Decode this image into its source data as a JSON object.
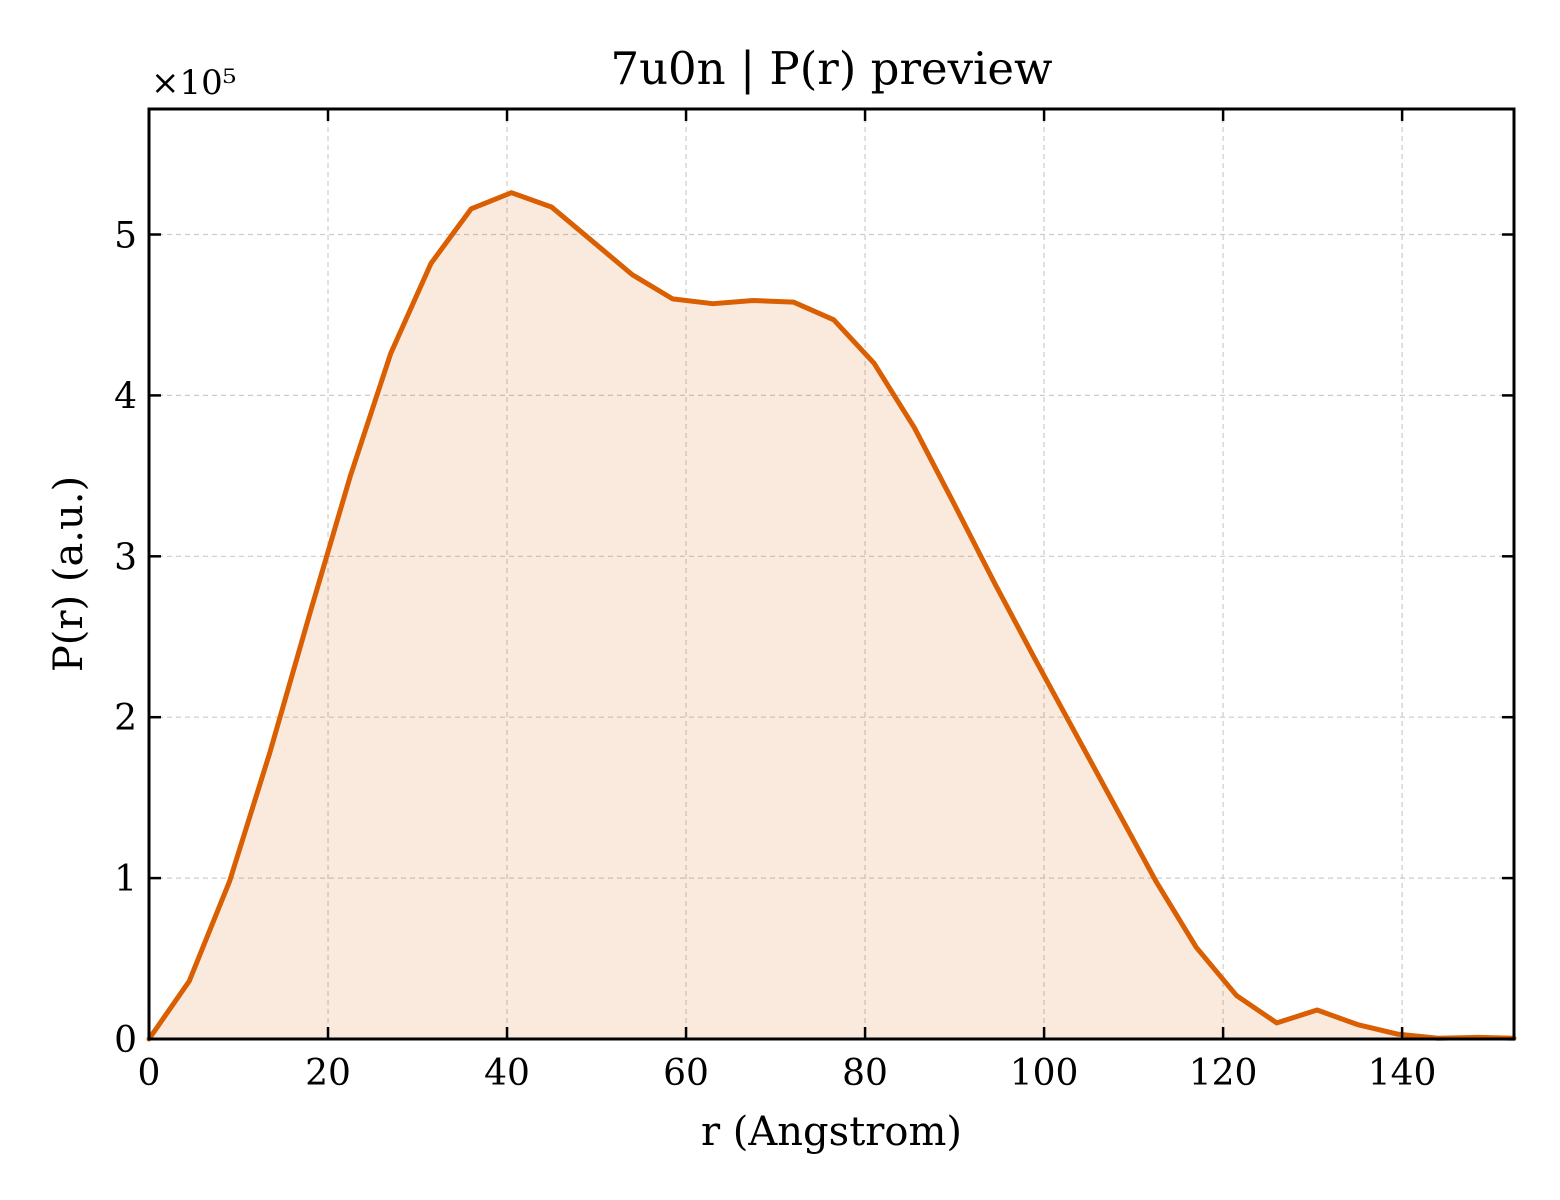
{
  "chart_data": {
    "type": "area",
    "title": "7u0n | P(r) preview",
    "xlabel": "r (Angstrom)",
    "ylabel": "P(r) (a.u.)",
    "y_offset_label": "×10⁵",
    "y_scale": 100000,
    "xlim": [
      0,
      152.5
    ],
    "ylim": [
      0,
      5.78
    ],
    "x_ticks": [
      0,
      20,
      40,
      60,
      80,
      100,
      120,
      140
    ],
    "x_tick_labels": [
      "0",
      "20",
      "40",
      "60",
      "80",
      "100",
      "120",
      "140"
    ],
    "y_ticks": [
      0,
      1,
      2,
      3,
      4,
      5
    ],
    "y_tick_labels": [
      "0",
      "1",
      "2",
      "3",
      "4",
      "5"
    ],
    "grid": true,
    "line_color": "#d95f02",
    "fill_color": "#d95f02",
    "series": [
      {
        "x": [
          0,
          4.5,
          9,
          13.5,
          18,
          22.5,
          27,
          31.5,
          36,
          40.5,
          45,
          49.5,
          54,
          58.5,
          63,
          67.5,
          72,
          76.5,
          81,
          85.5,
          90,
          94.5,
          99,
          103.5,
          108,
          112.5,
          117,
          121.5,
          126,
          130.5,
          135,
          139.5,
          144,
          148.5,
          152.5
        ],
        "y": [
          0,
          0.36,
          0.98,
          1.78,
          2.65,
          3.5,
          4.26,
          4.82,
          5.16,
          5.26,
          5.17,
          4.96,
          4.75,
          4.6,
          4.57,
          4.59,
          4.58,
          4.47,
          4.2,
          3.8,
          3.32,
          2.83,
          2.36,
          1.9,
          1.44,
          0.98,
          0.57,
          0.27,
          0.1,
          0.18,
          0.09,
          0.03,
          0.005,
          0.01,
          0.005
        ]
      }
    ]
  }
}
